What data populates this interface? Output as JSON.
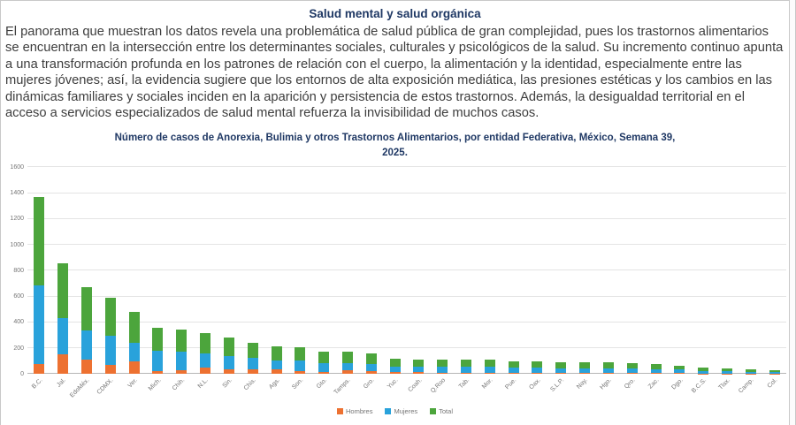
{
  "page": {
    "title": "Salud mental y salud orgánica",
    "paragraph": "El panorama que muestran los datos revela una problemática de salud pública de gran complejidad, pues los trastornos alimentarios se encuentran en la intersección entre los determinantes sociales, culturales y psicológicos de la salud. Su incremento continuo apunta a una transformación profunda en los patrones de relación con el cuerpo, la alimentación y la identidad, especialmente entre las mujeres jóvenes; así, la evidencia sugiere que los entornos de alta exposición mediática, las presiones estéticas y los cambios en las dinámicas familiares y sociales inciden en la aparición y persistencia de estos trastornos. Además, la desigualdad territorial en el acceso a servicios especializados de salud mental refuerza la invisibilidad de muchos casos."
  },
  "chart_data": {
    "type": "bar",
    "stacked": true,
    "title_line1": "Número de casos de Anorexia, Bulimia y otros Trastornos Alimentarios, por entidad Federativa, México, Semana 39,",
    "title_line2": "2025.",
    "xlabel": "",
    "ylabel": "",
    "ylim": [
      0,
      1600
    ],
    "yticks": [
      0,
      200,
      400,
      600,
      800,
      1000,
      1200,
      1400,
      1600
    ],
    "grid": true,
    "legend_position": "bottom",
    "categories": [
      "B.C.",
      "Jal.",
      "EdoMéx.",
      "CDMX.",
      "Ver.",
      "Mich.",
      "Chih.",
      "N.L.",
      "Sin.",
      "Chis.",
      "Ags.",
      "Son.",
      "Gto.",
      "Tamps.",
      "Gro.",
      "Yuc.",
      "Coah.",
      "Q.Roo",
      "Tab.",
      "Mor.",
      "Pue.",
      "Oax.",
      "S.L.P.",
      "Nay.",
      "Hgo.",
      "Qro.",
      "Zac.",
      "Dgo.",
      "B.C.S.",
      "Tlax.",
      "Camp.",
      "Col."
    ],
    "series": [
      {
        "name": "Hombres",
        "color": "#ED7131",
        "values": [
          80,
          150,
          110,
          70,
          95,
          22,
          32,
          50,
          35,
          37,
          38,
          20,
          15,
          27,
          20,
          15,
          18,
          12,
          12,
          10,
          10,
          12,
          8,
          10,
          10,
          12,
          6,
          8,
          4,
          3,
          3,
          2
        ]
      },
      {
        "name": "Mujeres",
        "color": "#29A2DB",
        "values": [
          605,
          280,
          225,
          225,
          145,
          156,
          140,
          108,
          105,
          85,
          68,
          82,
          70,
          58,
          58,
          43,
          39,
          44,
          43,
          44,
          40,
          37,
          38,
          35,
          34,
          29,
          32,
          25,
          21,
          18,
          15,
          13
        ]
      },
      {
        "name": "Total",
        "color": "#4CA53C",
        "values": [
          685,
          430,
          335,
          295,
          240,
          178,
          172,
          158,
          140,
          122,
          106,
          102,
          85,
          85,
          78,
          58,
          57,
          56,
          55,
          54,
          50,
          49,
          46,
          45,
          44,
          41,
          38,
          33,
          25,
          21,
          18,
          15
        ]
      }
    ]
  }
}
